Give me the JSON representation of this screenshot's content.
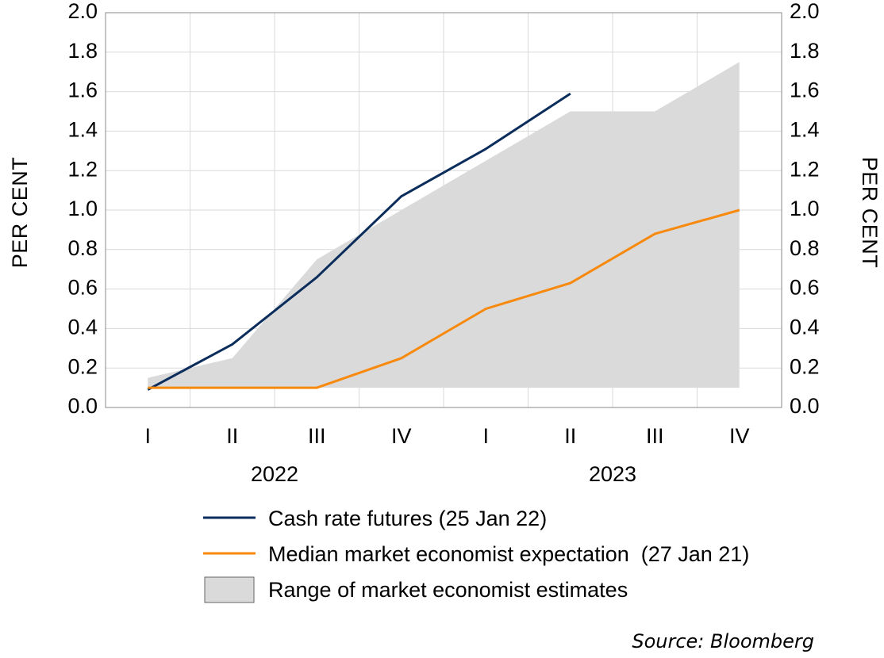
{
  "chart_data": {
    "type": "line",
    "y_axis_label_left": "PER CENT",
    "y_axis_label_right": "PER CENT",
    "ylim": [
      0,
      2
    ],
    "yticks": [
      "0.0",
      "0.2",
      "0.4",
      "0.6",
      "0.8",
      "1.0",
      "1.2",
      "1.4",
      "1.6",
      "1.8",
      "2.0"
    ],
    "categories": [
      "I",
      "II",
      "III",
      "IV",
      "I",
      "II",
      "III",
      "IV"
    ],
    "years": [
      {
        "label": "2022",
        "quarters": [
          "I",
          "II",
          "III",
          "IV"
        ]
      },
      {
        "label": "2023",
        "quarters": [
          "I",
          "II",
          "III",
          "IV"
        ]
      }
    ],
    "grid": true,
    "series": [
      {
        "name": "Cash rate futures (25 Jan 22)",
        "kind": "line",
        "color": "#0b2d5c",
        "values": [
          0.09,
          0.32,
          0.66,
          1.07,
          1.31,
          1.59,
          null,
          null
        ]
      },
      {
        "name": "Median market economist expectation  (27 Jan 21)",
        "kind": "line",
        "color": "#f7890d",
        "values": [
          0.1,
          0.1,
          0.1,
          0.25,
          0.5,
          0.63,
          0.88,
          1.0
        ]
      },
      {
        "name": "Range of market economist estimates",
        "kind": "range",
        "color": "#dadada",
        "lower": [
          0.1,
          0.1,
          0.1,
          0.1,
          0.1,
          0.1,
          0.1,
          0.1
        ],
        "upper": [
          0.15,
          0.25,
          0.75,
          1.0,
          1.25,
          1.5,
          1.5,
          1.75
        ]
      }
    ],
    "legend_position": "bottom"
  },
  "source": "Source: Bloomberg"
}
